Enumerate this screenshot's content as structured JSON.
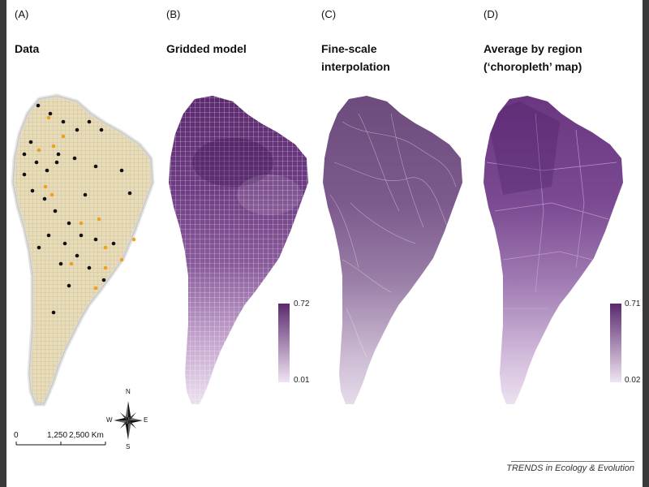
{
  "panels": [
    {
      "label": "(A)",
      "title_lines": [
        "Data"
      ]
    },
    {
      "label": "(B)",
      "title_lines": [
        "Gridded model"
      ]
    },
    {
      "label": "(C)",
      "title_lines": [
        "Fine-scale",
        "interpolation"
      ]
    },
    {
      "label": "(D)",
      "title_lines": [
        "Average by region",
        "(‘choropleth’ map)"
      ]
    }
  ],
  "legend_b": {
    "max": "0.72",
    "min": "0.01"
  },
  "legend_d": {
    "max": "0.71",
    "min": "0.02"
  },
  "scale_bar": {
    "labels": [
      "0",
      "1,250",
      "2,500 Km"
    ]
  },
  "compass": {
    "n": "N",
    "s": "S",
    "e": "E",
    "w": "W"
  },
  "credit": "TRENDS in Ecology & Evolution",
  "colors": {
    "land_beige": "#e8dcb8",
    "point_black": "#111111",
    "point_orange": "#f0a020",
    "purple_high": "#5b2a6e",
    "purple_low": "#eee2f1"
  }
}
